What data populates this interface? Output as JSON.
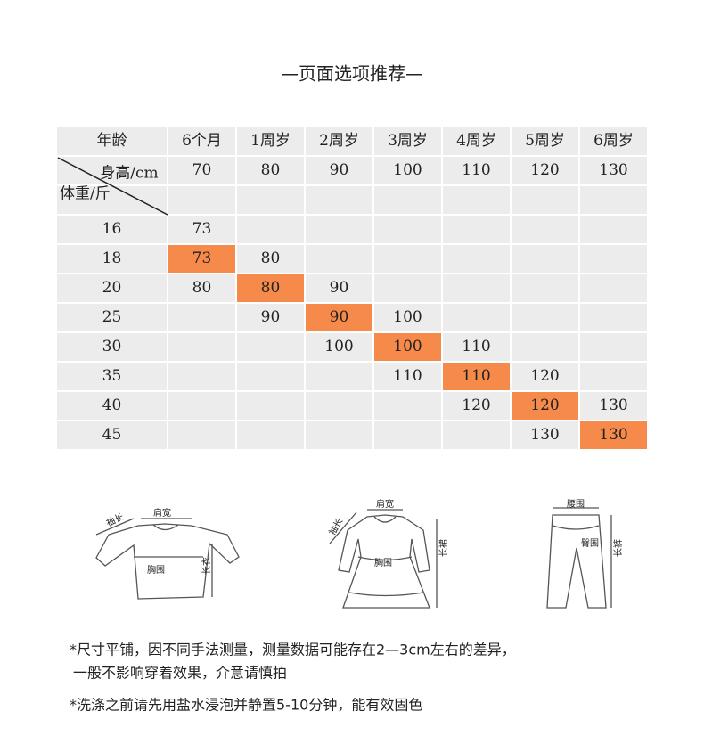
{
  "header": {
    "title": "—页面选项推荐—"
  },
  "table": {
    "corner": "年龄",
    "ages": [
      "6个月",
      "1周岁",
      "2周岁",
      "3周岁",
      "4周岁",
      "5周岁",
      "6周岁"
    ],
    "height_label": "身高/cm",
    "heights": [
      70,
      80,
      90,
      100,
      110,
      120,
      130
    ],
    "weight_label": "体重/斤",
    "rows": [
      {
        "weight": 16,
        "cells": [
          73,
          null,
          null,
          null,
          null,
          null,
          null
        ],
        "highlight": null
      },
      {
        "weight": 18,
        "cells": [
          73,
          80,
          null,
          null,
          null,
          null,
          null
        ],
        "highlight": 0
      },
      {
        "weight": 20,
        "cells": [
          80,
          80,
          90,
          null,
          null,
          null,
          null
        ],
        "highlight": 1
      },
      {
        "weight": 25,
        "cells": [
          null,
          90,
          90,
          100,
          null,
          null,
          null
        ],
        "highlight": 2
      },
      {
        "weight": 30,
        "cells": [
          null,
          null,
          100,
          100,
          110,
          null,
          null
        ],
        "highlight": 3
      },
      {
        "weight": 35,
        "cells": [
          null,
          null,
          null,
          110,
          110,
          120,
          null
        ],
        "highlight": 4
      },
      {
        "weight": 40,
        "cells": [
          null,
          null,
          null,
          null,
          120,
          120,
          130
        ],
        "highlight": 5
      },
      {
        "weight": 45,
        "cells": [
          null,
          null,
          null,
          null,
          null,
          130,
          130
        ],
        "highlight": 6
      }
    ],
    "highlight_color": "#f58a4b"
  },
  "figures": {
    "shirt": {
      "sleeve": "袖长",
      "shoulder": "肩宽",
      "chest": "胸围",
      "length": "长衣"
    },
    "dress": {
      "sleeve": "袖长",
      "shoulder": "肩宽",
      "chest": "胸围",
      "length": "长裙"
    },
    "pants": {
      "waist": "腰围",
      "hip": "臀围",
      "length": "长裤"
    }
  },
  "notes": [
    "*尺寸平铺，因不同手法测量，测量数据可能存在2—3cm左右的差异，",
    "一般不影响穿着效果，介意请慎拍",
    "*洗涤之前请先用盐水浸泡并静置5-10分钟，能有效固色"
  ]
}
